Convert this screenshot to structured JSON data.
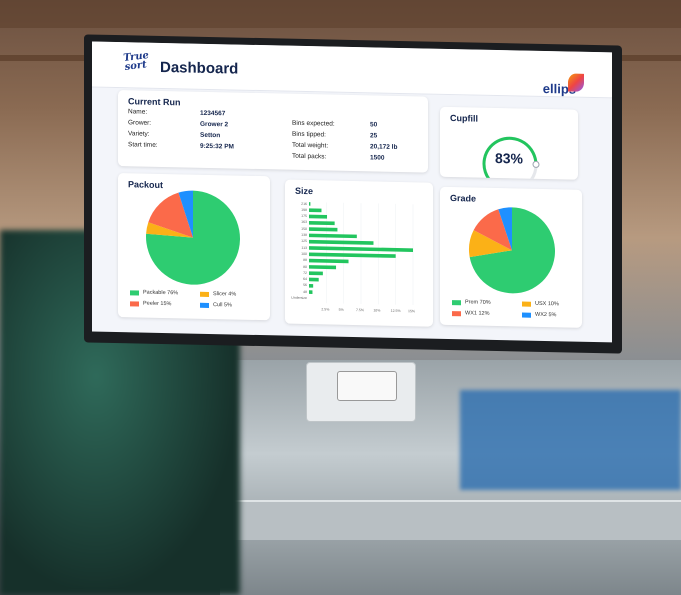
{
  "header": {
    "logo_text": "True sort",
    "title": "Dashboard",
    "brand": "ellips"
  },
  "current_run": {
    "title": "Current Run",
    "left": [
      {
        "label": "Name:",
        "value": "1234567"
      },
      {
        "label": "Grower:",
        "value": "Grower 2"
      },
      {
        "label": "Variety:",
        "value": "Setton"
      },
      {
        "label": "Start time:",
        "value": "9:25:32 PM"
      }
    ],
    "right": [
      {
        "label": "Bins expected:",
        "value": "50"
      },
      {
        "label": "Bins tipped:",
        "value": "25"
      },
      {
        "label": "Total weight:",
        "value": "20,172 lb"
      },
      {
        "label": "Total packs:",
        "value": "1500"
      }
    ]
  },
  "cupfill": {
    "title": "Cupfill",
    "value_label": "83%",
    "value": 83,
    "color": "#22c55e"
  },
  "chart_data": [
    {
      "type": "pie",
      "title": "Packout",
      "slices": [
        {
          "name": "Packable 76%",
          "value": 76,
          "color": "#2ecc71"
        },
        {
          "name": "Slicer 4%",
          "value": 4,
          "color": "#fbb117"
        },
        {
          "name": "Peeler 15%",
          "value": 15,
          "color": "#fb6a4a"
        },
        {
          "name": "Cull 5%",
          "value": 5,
          "color": "#1e90ff"
        }
      ]
    },
    {
      "type": "bar",
      "orientation": "horizontal",
      "title": "Size",
      "categories": [
        "216",
        "198",
        "175",
        "163",
        "150",
        "138",
        "125",
        "113",
        "100",
        "88",
        "80",
        "72",
        "64",
        "56",
        "48",
        "Undersize"
      ],
      "values": [
        0.2,
        1.8,
        2.6,
        3.7,
        4.1,
        6.9,
        9.3,
        15,
        12.5,
        5.7,
        3.9,
        2,
        1.4,
        0.6,
        0.5,
        0
      ],
      "ticks": [
        "2.5%",
        "5%",
        "7.5%",
        "10%",
        "12.5%",
        "15%"
      ],
      "xlim": [
        0,
        15
      ],
      "color": "#22c55e"
    },
    {
      "type": "pie",
      "title": "Grade",
      "slices": [
        {
          "name": "Prem 70%",
          "value": 70,
          "color": "#2ecc71"
        },
        {
          "name": "USX 10%",
          "value": 10,
          "color": "#fbb117"
        },
        {
          "name": "WX1 12%",
          "value": 12,
          "color": "#fb6a4a"
        },
        {
          "name": "WX2 5%",
          "value": 5,
          "color": "#1e90ff"
        }
      ]
    }
  ]
}
